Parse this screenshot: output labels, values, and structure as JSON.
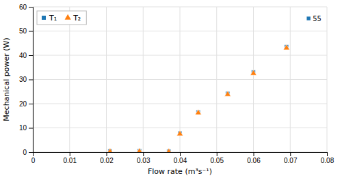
{
  "chart_data": {
    "type": "scatter",
    "xlabel": "Flow rate (m³s⁻¹)",
    "ylabel": "Mechanical power (W)",
    "series": [
      {
        "name": "T₁",
        "marker": "square",
        "x": [
          0.021,
          0.029,
          0.037,
          0.04,
          0.045,
          0.053,
          0.06,
          0.069,
          0.075
        ],
        "values": [
          0.4,
          0.5,
          0.3,
          7.8,
          16.5,
          24.2,
          33.0,
          43.5,
          55.2
        ]
      },
      {
        "name": "T₂",
        "marker": "triangle",
        "x": [
          0.021,
          0.029,
          0.037,
          0.04,
          0.045,
          0.053,
          0.06,
          0.069
        ],
        "values": [
          0.2,
          0.3,
          0.15,
          7.5,
          16.2,
          23.8,
          32.5,
          43.0
        ]
      }
    ],
    "annotations": [
      {
        "text": "55",
        "x": 0.075,
        "y": 55.2
      }
    ],
    "xlim": [
      0,
      0.08
    ],
    "ylim": [
      0,
      60
    ],
    "xticks": [
      0,
      0.01,
      0.02,
      0.03,
      0.04,
      0.05,
      0.06,
      0.07,
      0.08
    ],
    "yticks": [
      0,
      10,
      20,
      30,
      40,
      50,
      60
    ],
    "grid": true,
    "legend": "upper left"
  }
}
